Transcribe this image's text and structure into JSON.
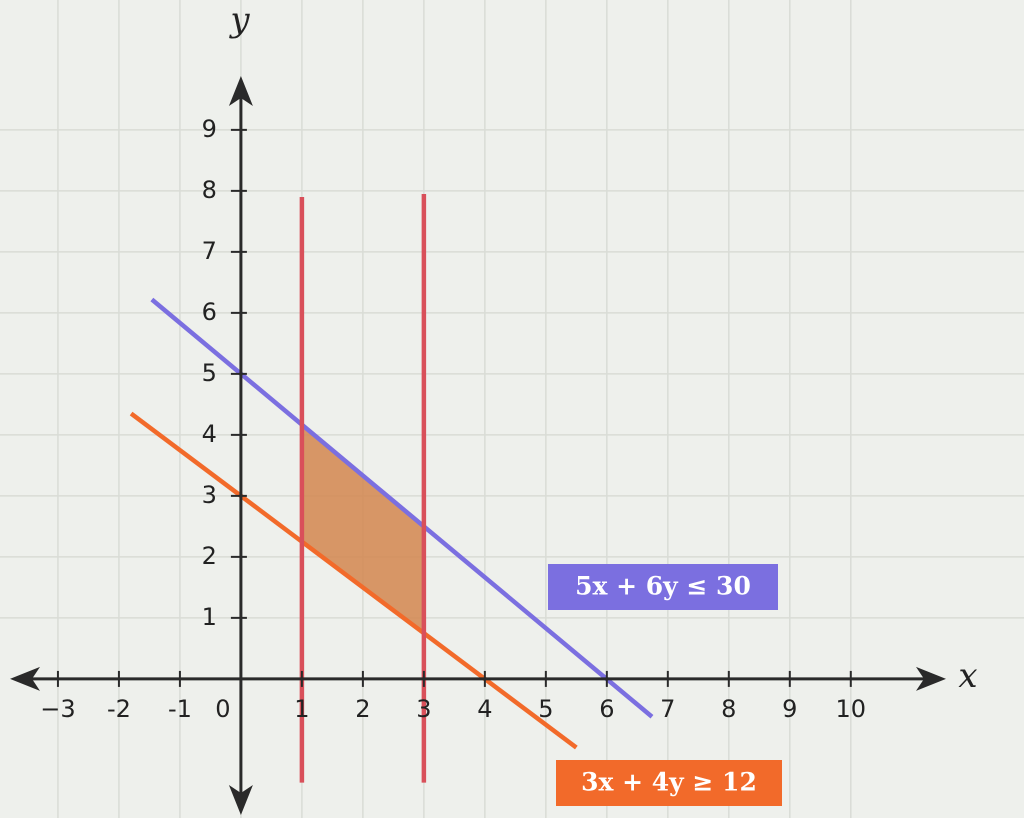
{
  "chart_data": {
    "type": "line",
    "x_label": "x",
    "y_label": "y",
    "xlim": [
      -3.95,
      12.84
    ],
    "ylim": [
      -2.28,
      11.13
    ],
    "xticks": [
      {
        "value": -3,
        "label": "−3"
      },
      -2,
      -1,
      0,
      1,
      2,
      3,
      4,
      5,
      6,
      7,
      8,
      9,
      10
    ],
    "yticks": [
      1,
      2,
      3,
      4,
      5,
      6,
      7,
      8,
      9
    ],
    "grid": true,
    "region": {
      "color": "#d2864f",
      "x": [
        1,
        1,
        3,
        3
      ],
      "values": [
        2.25,
        4.17,
        2.5,
        0.75
      ]
    },
    "series": [
      {
        "name": "5x + 6y ≤ 30",
        "color": "#7b6fe0",
        "x": [
          -1.46,
          6.74
        ],
        "values": [
          6.22,
          -0.62
        ]
      },
      {
        "name": "3x + 4y ≥ 12",
        "color": "#f26a2a",
        "x": [
          -1.8,
          5.5
        ],
        "values": [
          4.35,
          -1.125
        ]
      },
      {
        "color": "#d9505a",
        "x": [
          1,
          1
        ],
        "values": [
          7.9,
          -1.7
        ]
      },
      {
        "color": "#d9505a",
        "x": [
          3,
          3
        ],
        "values": [
          7.95,
          -1.7
        ]
      }
    ]
  }
}
